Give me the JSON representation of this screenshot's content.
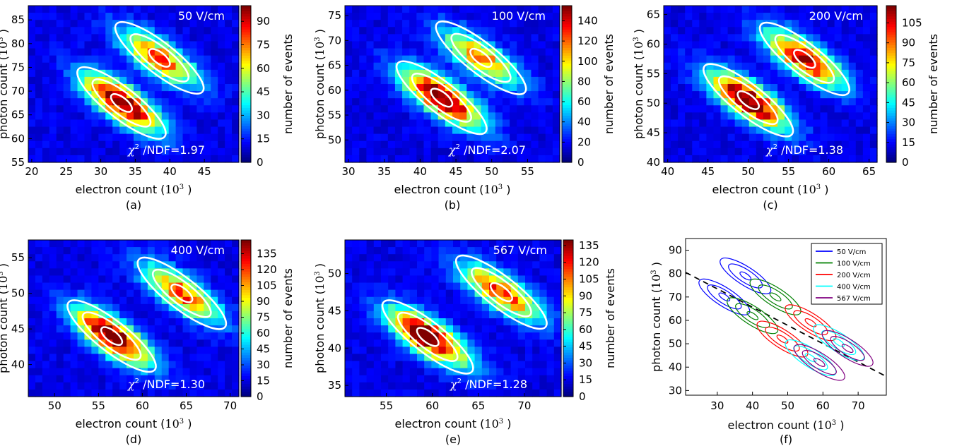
{
  "chart_data": [
    {
      "type": "heatmap",
      "panel_label": "(a)",
      "field_label": "50 V/cm",
      "fit_label": "/NDF=1.97",
      "fit_symbol": "χ",
      "fit_power": "2",
      "xlabel": "electron count",
      "ylabel": "photon count",
      "unit_base": "10",
      "unit_power": "3",
      "xlim": [
        19.5,
        50
      ],
      "ylim": [
        55,
        88
      ],
      "xticks": [
        "20",
        "25",
        "30",
        "35",
        "40",
        "45"
      ],
      "yticks": [
        "55",
        "60",
        "65",
        "70",
        "75",
        "80",
        "85"
      ],
      "colorbar_label": "number of events",
      "colorbar_max": 100,
      "colorbar_ticks": [
        "0",
        "15",
        "30",
        "45",
        "60",
        "75",
        "90"
      ],
      "peaks": [
        {
          "x": 33,
          "y": 67.5,
          "amp": 100
        },
        {
          "x": 38.5,
          "y": 77,
          "amp": 72
        }
      ]
    },
    {
      "type": "heatmap",
      "panel_label": "(b)",
      "field_label": "100 V/cm",
      "fit_label": "/NDF=2.07",
      "fit_symbol": "χ",
      "fit_power": "2",
      "xlabel": "electron count",
      "ylabel": "photon count",
      "unit_base": "10",
      "unit_power": "3",
      "xlim": [
        29.5,
        59.5
      ],
      "ylim": [
        45.5,
        77
      ],
      "xticks": [
        "30",
        "35",
        "40",
        "45",
        "50",
        "55"
      ],
      "yticks": [
        "50",
        "55",
        "60",
        "65",
        "70",
        "75"
      ],
      "colorbar_label": "number of events",
      "colorbar_max": 155,
      "colorbar_ticks": [
        "0",
        "20",
        "40",
        "60",
        "80",
        "100",
        "120",
        "140"
      ],
      "peaks": [
        {
          "x": 43,
          "y": 58.5,
          "amp": 155
        },
        {
          "x": 48.5,
          "y": 66.5,
          "amp": 100
        }
      ]
    },
    {
      "type": "heatmap",
      "panel_label": "(c)",
      "field_label": "200 V/cm",
      "fit_label": "/NDF=1.38",
      "fit_symbol": "χ",
      "fit_power": "2",
      "xlabel": "electron count",
      "ylabel": "photon count",
      "unit_base": "10",
      "unit_power": "3",
      "xlim": [
        39.5,
        66
      ],
      "ylim": [
        40,
        66.5
      ],
      "xticks": [
        "40",
        "45",
        "50",
        "55",
        "60",
        "65"
      ],
      "yticks": [
        "40",
        "45",
        "50",
        "55",
        "60",
        "65"
      ],
      "colorbar_label": "number of events",
      "colorbar_max": 118,
      "colorbar_ticks": [
        "0",
        "15",
        "30",
        "45",
        "60",
        "75",
        "90",
        "105"
      ],
      "peaks": [
        {
          "x": 50,
          "y": 50.5,
          "amp": 118
        },
        {
          "x": 57,
          "y": 57.5,
          "amp": 100
        }
      ]
    },
    {
      "type": "heatmap",
      "panel_label": "(d)",
      "field_label": "400 V/cm",
      "fit_label": "/NDF=1.30",
      "fit_symbol": "χ",
      "fit_power": "2",
      "xlabel": "electron count",
      "ylabel": "photon count",
      "unit_base": "10",
      "unit_power": "3",
      "xlim": [
        47,
        71
      ],
      "ylim": [
        35.5,
        57.5
      ],
      "xticks": [
        "50",
        "55",
        "60",
        "65",
        "70"
      ],
      "yticks": [
        "40",
        "45",
        "50",
        "55"
      ],
      "colorbar_label": "number of events",
      "colorbar_max": 148,
      "colorbar_ticks": [
        "0",
        "15",
        "30",
        "45",
        "60",
        "75",
        "90",
        "105",
        "120",
        "135"
      ],
      "peaks": [
        {
          "x": 56.5,
          "y": 44,
          "amp": 148
        },
        {
          "x": 64.5,
          "y": 50,
          "amp": 110
        }
      ]
    },
    {
      "type": "heatmap",
      "panel_label": "(e)",
      "field_label": "567 V/cm",
      "fit_label": "/NDF=1.28",
      "fit_symbol": "χ",
      "fit_power": "2",
      "xlabel": "electron count",
      "ylabel": "photon count",
      "unit_base": "10",
      "unit_power": "3",
      "xlim": [
        50.5,
        74
      ],
      "ylim": [
        33.5,
        54.5
      ],
      "xticks": [
        "55",
        "60",
        "65",
        "70"
      ],
      "yticks": [
        "35",
        "40",
        "45",
        "50"
      ],
      "colorbar_label": "number of events",
      "colorbar_max": 140,
      "colorbar_ticks": [
        "0",
        "15",
        "30",
        "45",
        "60",
        "75",
        "90",
        "105",
        "120",
        "135"
      ],
      "peaks": [
        {
          "x": 59.5,
          "y": 41.5,
          "amp": 140
        },
        {
          "x": 67.5,
          "y": 47.5,
          "amp": 105
        }
      ]
    },
    {
      "type": "line",
      "panel_label": "(f)",
      "xlabel": "electron count",
      "ylabel": "photon count",
      "unit_base": "10",
      "unit_power": "3",
      "xlim": [
        21,
        78
      ],
      "ylim": [
        28,
        95
      ],
      "xticks": [
        "30",
        "40",
        "50",
        "60",
        "70"
      ],
      "yticks": [
        "30",
        "40",
        "50",
        "60",
        "70",
        "80",
        "90"
      ],
      "legend_position": "top-right",
      "trend_line": {
        "points": [
          [
            21,
            80.5
          ],
          [
            78,
            36
          ]
        ],
        "style": "dashed"
      },
      "series": [
        {
          "name": "50 V/cm",
          "color": "#0000ff",
          "centers": [
            [
              32,
              70
            ],
            [
              38,
              79
            ]
          ]
        },
        {
          "name": "100 V/cm",
          "color": "#008000",
          "centers": [
            [
              40,
              62
            ],
            [
              46.5,
              70
            ]
          ]
        },
        {
          "name": "200 V/cm",
          "color": "#ff0000",
          "centers": [
            [
              48.5,
              52
            ],
            [
              56.5,
              59
            ]
          ]
        },
        {
          "name": "400 V/cm",
          "color": "#00ffff",
          "centers": [
            [
              56.5,
              44
            ],
            [
              64.5,
              50.5
            ]
          ]
        },
        {
          "name": "567 V/cm",
          "color": "#800080",
          "centers": [
            [
              59,
              42
            ],
            [
              67,
              48
            ]
          ]
        }
      ]
    }
  ]
}
